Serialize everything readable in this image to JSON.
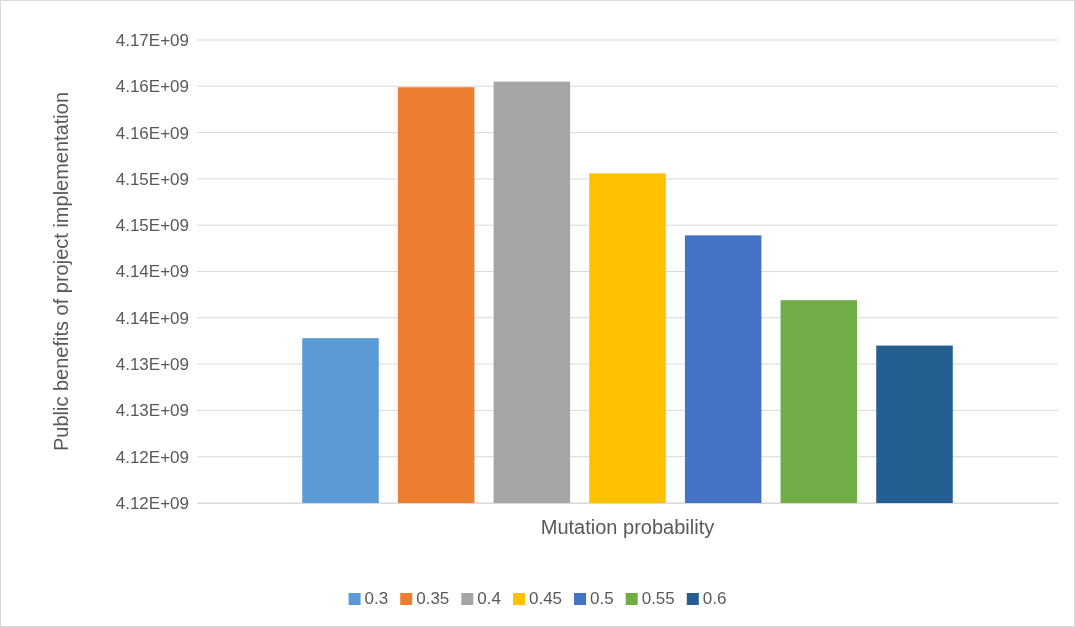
{
  "chart_data": {
    "type": "bar",
    "xlabel": "Mutation probability",
    "ylabel": "Public benefits of project implementation",
    "categories": [
      null
    ],
    "series": [
      {
        "name": "0.3",
        "color": "#5b9bd5",
        "values": [
          4132800000
        ]
      },
      {
        "name": "0.35",
        "color": "#ed7d31",
        "values": [
          4159900000
        ]
      },
      {
        "name": "0.4",
        "color": "#a5a5a5",
        "values": [
          4160500000
        ]
      },
      {
        "name": "0.45",
        "color": "#ffc000",
        "values": [
          4150600000
        ]
      },
      {
        "name": "0.5",
        "color": "#4472c4",
        "values": [
          4143900000
        ]
      },
      {
        "name": "0.55",
        "color": "#70ad47",
        "values": [
          4136900000
        ]
      },
      {
        "name": "0.6",
        "color": "#255e91",
        "values": [
          4132000000
        ]
      }
    ],
    "ylim": [
      4115000000,
      4165000000
    ],
    "yticks": [
      {
        "value": 4115000000,
        "label": "4.12E+09"
      },
      {
        "value": 4120000000,
        "label": "4.12E+09"
      },
      {
        "value": 4125000000,
        "label": "4.13E+09"
      },
      {
        "value": 4130000000,
        "label": "4.13E+09"
      },
      {
        "value": 4135000000,
        "label": "4.14E+09"
      },
      {
        "value": 4140000000,
        "label": "4.14E+09"
      },
      {
        "value": 4145000000,
        "label": "4.15E+09"
      },
      {
        "value": 4150000000,
        "label": "4.15E+09"
      },
      {
        "value": 4155000000,
        "label": "4.16E+09"
      },
      {
        "value": 4160000000,
        "label": "4.16E+09"
      },
      {
        "value": 4165000000,
        "label": "4.17E+09"
      }
    ],
    "grid": "y",
    "legend": "bottom"
  }
}
